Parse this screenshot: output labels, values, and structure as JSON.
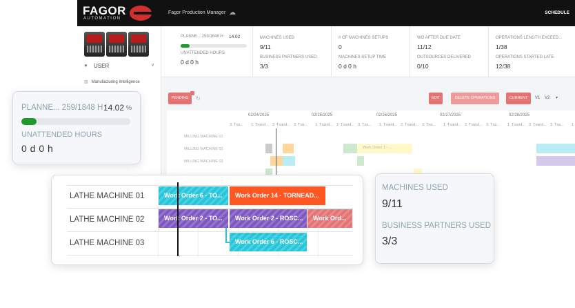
{
  "app": {
    "brand": "FAGOR",
    "brand_sub": "AUTOMATION",
    "title": "Fagor Production Manager",
    "schedule_label": "SCHEDULE"
  },
  "sidebar": {
    "user_label": "USER",
    "item_label": "Manufacturing Intelligence"
  },
  "kpis": {
    "planned_label": "PLANNE... 259/1848 H",
    "planned_pct": "14.02",
    "planned_pct_sign": "%",
    "planned_fraction": 0.1402,
    "unattended_label": "UNATTENDED HOURS",
    "unattended_value": "0 d 0 h",
    "machines_used_label": "MACHINES USED",
    "machines_used_value": "9/11",
    "business_partners_label": "BUSINESS PARTNERS USED",
    "business_partners_value": "3/3",
    "setups_label": "# OF MACHINES SETUPS",
    "setups_value": "0",
    "setup_time_label": "MACHINES SETUP TIME",
    "setup_time_value": "0 d 0 h",
    "wo_due_label": "WO AFTER DUE DATE",
    "wo_due_value": "11/12",
    "outsources_label": "OUTSOURCES DELIVERED",
    "outsources_value": "0/10",
    "ops_exceed_label": "OPERATIONS LENGTH EXCEED...",
    "ops_exceed_value": "1/38",
    "ops_late_label": "OPERATIONS STARTED LATE",
    "ops_late_value": "12/38"
  },
  "toolbar": {
    "pending": "PENDING",
    "edit": "EDIT",
    "delete": "DELETE OPERATIONS",
    "current": "CURRENT",
    "v1": "V1",
    "v2": "V2"
  },
  "timeline": {
    "dates": [
      "02/24/2025",
      "02/25/2025",
      "02/26/2025",
      "02/27/2025",
      "02/28/2025"
    ],
    "subheads": [
      "3. Txa...",
      "1. Txand...",
      "2. Txand...",
      "3. Txa...",
      "1. Txand...",
      "2. Txand...",
      "3. Txa...",
      "1. Txand...",
      "2. Txand...",
      "3. Txa...",
      "1. Txand...",
      "2. Txand...",
      "3. Txa...",
      "1. Txand...",
      "2. Txand...",
      "3. Txa...",
      "1. Txa...",
      "2. Txa..."
    ],
    "bg_machines": [
      "MILLING MACHINE 01",
      "MILLING MACHINE 02",
      "MILLING MACHINE 03"
    ],
    "bg_bar_label": "Work Order 1 - ...",
    "bg_side_label": "Fagor Automation"
  },
  "lathe": {
    "rows": [
      "LATHE MACHINE 01",
      "LATHE MACHINE 02",
      "LATHE MACHINE 03"
    ],
    "bars": [
      {
        "row": 0,
        "label": "Work Order 6 - TO...",
        "color": "#26c6da"
      },
      {
        "row": 0,
        "label": "Work Order 14 - TORNEAD...",
        "color": "#ff5722"
      },
      {
        "row": 1,
        "label": "Work Order 2 - TO...",
        "color": "#7e57c2"
      },
      {
        "row": 1,
        "label": "Work Order 2 - ROSC...",
        "color": "#7e57c2"
      },
      {
        "row": 1,
        "label": "Work Ord...",
        "color": "#e57373"
      },
      {
        "row": 2,
        "label": "Work Order 6 - ROSC...",
        "color": "#26c6da"
      }
    ]
  },
  "colors": {
    "accent": "#e57373",
    "progress": "#1e9a2c",
    "topbar": "#111111"
  }
}
